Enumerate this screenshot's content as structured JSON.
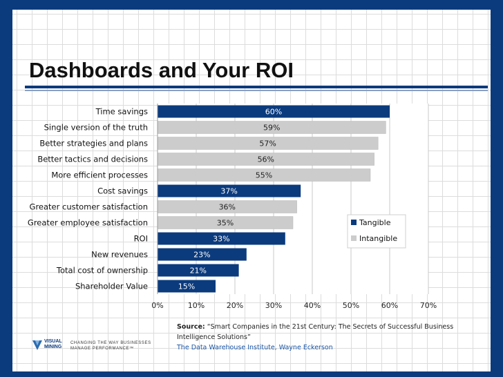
{
  "slide": {
    "title": "Dashboards and Your ROI"
  },
  "chart_data": {
    "type": "bar",
    "orientation": "horizontal",
    "categories": [
      "Time savings",
      "Single version of the truth",
      "Better strategies and plans",
      "Better tactics and decisions",
      "More efficient processes",
      "Cost savings",
      "Greater customer satisfaction",
      "Greater employee satisfaction",
      "ROI",
      "New revenues",
      "Total cost of ownership",
      "Shareholder Value"
    ],
    "values": [
      60,
      59,
      57,
      56,
      55,
      37,
      36,
      35,
      33,
      23,
      21,
      15
    ],
    "value_labels": [
      "60%",
      "59%",
      "57%",
      "56%",
      "55%",
      "37%",
      "36%",
      "35%",
      "33%",
      "23%",
      "21%",
      "15%"
    ],
    "bar_types": [
      "Tangible",
      "Intangible",
      "Intangible",
      "Intangible",
      "Intangible",
      "Tangible",
      "Intangible",
      "Intangible",
      "Tangible",
      "Tangible",
      "Tangible",
      "Tangible"
    ],
    "legend": [
      {
        "name": "Tangible",
        "color": "#0b3b7d"
      },
      {
        "name": "Intangible",
        "color": "#cccccc"
      }
    ],
    "legend_position": "right",
    "xlim": [
      0,
      70
    ],
    "x_ticks": [
      0,
      10,
      20,
      30,
      40,
      50,
      60,
      70
    ],
    "x_tick_labels": [
      "0%",
      "10%",
      "20%",
      "30%",
      "40%",
      "50%",
      "60%",
      "70%"
    ],
    "grid": true,
    "xlabel": "",
    "ylabel": ""
  },
  "source": {
    "label": "Source:",
    "text": "“Smart Companies in the 21st Century: The Secrets of Successful Business Intelligence Solutions”",
    "org": "The Data Warehouse Institute, Wayne Eckerson"
  },
  "logo": {
    "line1": "VISUAL",
    "line2": "MINING",
    "tagline1": "CHANGING THE WAY BUSINESSES",
    "tagline2": "MANAGE PERFORMANCE™"
  },
  "colors": {
    "background": "#0b3b7d",
    "tangible": "#0b3b7d",
    "intangible": "#cccccc"
  }
}
